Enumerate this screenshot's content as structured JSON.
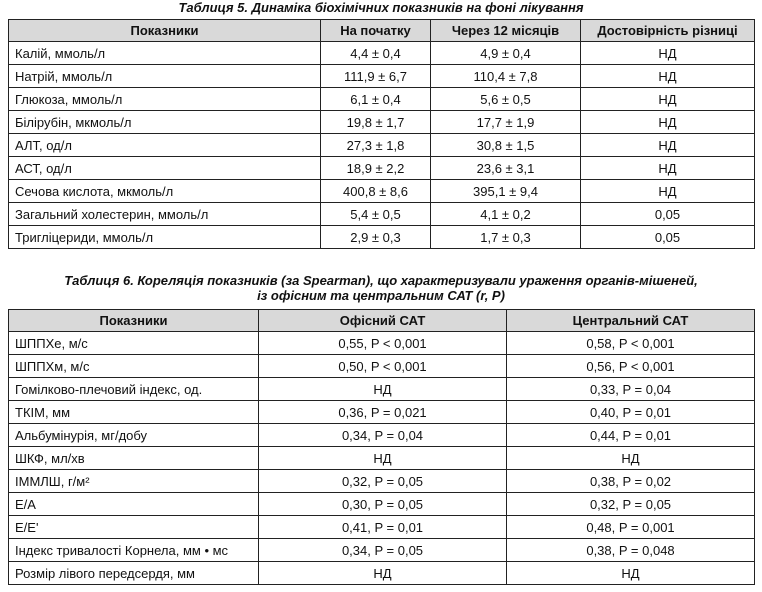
{
  "table5": {
    "caption": "Таблиця 5. Динаміка біохімічних показників на фоні лікування",
    "headers": [
      "Показники",
      "На початку",
      "Через 12 місяців",
      "Достовірність різниці"
    ],
    "rows": [
      [
        "Калій, ммоль/л",
        "4,4 ± 0,4",
        "4,9 ± 0,4",
        "НД"
      ],
      [
        "Натрій, ммоль/л",
        "111,9 ± 6,7",
        "110,4 ± 7,8",
        "НД"
      ],
      [
        "Глюкоза, ммоль/л",
        "6,1 ± 0,4",
        "5,6 ± 0,5",
        "НД"
      ],
      [
        "Білірубін, мкмоль/л",
        "19,8 ± 1,7",
        "17,7 ± 1,9",
        "НД"
      ],
      [
        "АЛТ, од/л",
        "27,3 ± 1,8",
        "30,8 ± 1,5",
        "НД"
      ],
      [
        "АСТ, од/л",
        "18,9 ± 2,2",
        "23,6 ± 3,1",
        "НД"
      ],
      [
        "Сечова кислота, мкмоль/л",
        "400,8 ± 8,6",
        "395,1 ± 9,4",
        "НД"
      ],
      [
        "Загальний холестерин, ммоль/л",
        "5,4 ± 0,5",
        "4,1 ± 0,2",
        "0,05"
      ],
      [
        "Тригліцериди, ммоль/л",
        "2,9 ± 0,3",
        "1,7 ± 0,3",
        "0,05"
      ]
    ]
  },
  "table6": {
    "caption_line1": "Таблиця 6. Кореляція показників (за Spearman), що характеризували ураження органів-мішеней,",
    "caption_line2": "із офісним та центральним САТ (r, P)",
    "headers": [
      "Показники",
      "Офісний САТ",
      "Центральний САТ"
    ],
    "rows": [
      [
        "ШППХе, м/с",
        "0,55, P < 0,001",
        "0,58, P < 0,001"
      ],
      [
        "ШППХм, м/с",
        "0,50, P < 0,001",
        "0,56, P < 0,001"
      ],
      [
        "Гомілково-плечовий індекс, од.",
        "НД",
        "0,33, P = 0,04"
      ],
      [
        "ТКІМ, мм",
        "0,36, P = 0,021",
        "0,40, P = 0,01"
      ],
      [
        "Альбумінурія, мг/добу",
        "0,34, P = 0,04",
        "0,44, P = 0,01"
      ],
      [
        "ШКФ, мл/хв",
        "НД",
        "НД"
      ],
      [
        "ІММЛШ, г/м²",
        "0,32, P = 0,05",
        "0,38, P = 0,02"
      ],
      [
        "Е/А",
        "0,30, P = 0,05",
        "0,32, P = 0,05"
      ],
      [
        "Е/Е'",
        "0,41, P = 0,01",
        "0,48, P = 0,001"
      ],
      [
        "Індекс тривалості Корнела, мм • мс",
        "0,34, P = 0,05",
        "0,38, P = 0,048"
      ],
      [
        "Розмір лівого передсердя, мм",
        "НД",
        "НД"
      ]
    ]
  }
}
